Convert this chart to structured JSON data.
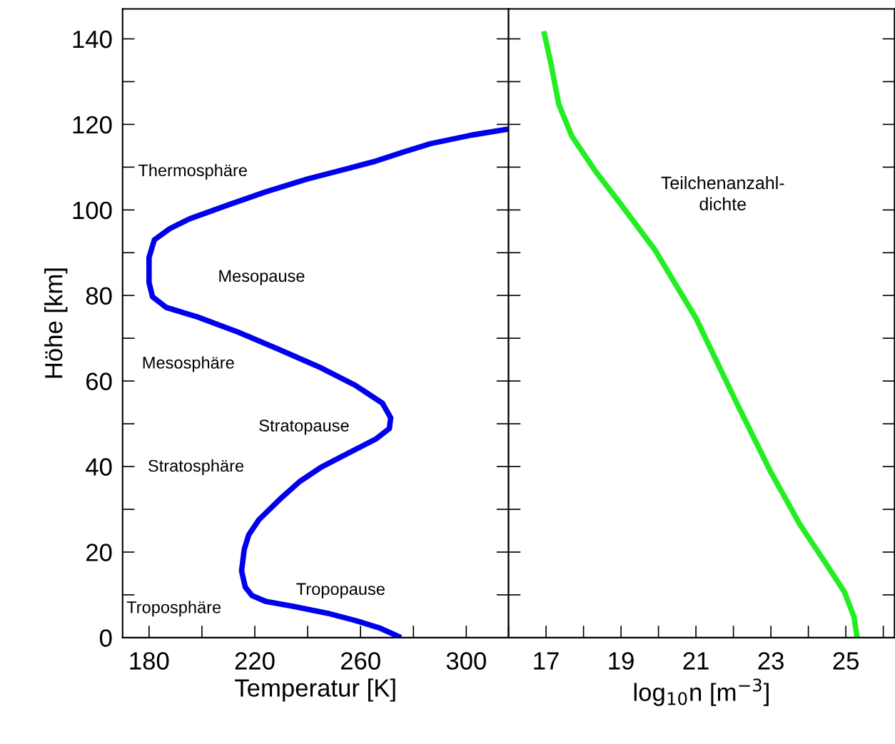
{
  "chart_data": [
    {
      "type": "line",
      "xlabel": "Temperatur [K]",
      "ylabel": "Höhe [km]",
      "xlim": [
        170,
        316
      ],
      "ylim": [
        0,
        147
      ],
      "xticks": [
        180,
        220,
        260,
        300
      ],
      "yticks": [
        0,
        20,
        40,
        60,
        80,
        100,
        120,
        140
      ],
      "grid": false,
      "legend": false,
      "marker": "none",
      "line_style": "solid",
      "series": [
        {
          "color": "#0000ee",
          "x": [
            275.3,
            267,
            258,
            247.5,
            234.5,
            224,
            219,
            216.4,
            215,
            216,
            217.7,
            221.6,
            229.4,
            237,
            245,
            255.3,
            265.7,
            270.9,
            271.4,
            268.3,
            258,
            245,
            229.4,
            213.8,
            198.2,
            186.5,
            181.3,
            180,
            180,
            182,
            187.8,
            195.6,
            211,
            224,
            239.7,
            255.3,
            265.7,
            276,
            286.5,
            302,
            315.8
          ],
          "values": [
            0,
            2.3,
            4,
            5.7,
            7.3,
            8.5,
            9.8,
            11.8,
            15.6,
            20.6,
            24,
            27.6,
            32.3,
            36.5,
            39.8,
            43.1,
            46.4,
            48.9,
            51.4,
            54.8,
            59,
            63.1,
            67.3,
            71.4,
            75,
            77.2,
            79.7,
            83,
            88.9,
            93,
            95.6,
            98,
            101.4,
            104.2,
            107.2,
            109.7,
            111.4,
            113.5,
            115.5,
            117.5,
            118.9
          ]
        }
      ],
      "annotations": [
        "Thermosphäre",
        "Mesopause",
        "Mesosphäre",
        "Stratopause",
        "Stratosphäre",
        "Tropopause",
        "Troposphäre"
      ]
    },
    {
      "type": "line",
      "xlabel": "log$_{10}$n [m$^{−3}$]",
      "xlim": [
        16,
        26.3
      ],
      "ylim": [
        0,
        147
      ],
      "tick_labels": "x",
      "xticks": [
        17,
        19,
        21,
        23,
        25
      ],
      "yticks": [
        0,
        20,
        40,
        60,
        80,
        100,
        120,
        140
      ],
      "grid": false,
      "legend": false,
      "marker": "none",
      "line_style": "solid",
      "series": [
        {
          "color": "#22ee22",
          "x": [
            25.3,
            25.22,
            24.96,
            24.47,
            23.77,
            22.98,
            22.09,
            21,
            19.91,
            18.92,
            18.33,
            17.69,
            17.34,
            17.14,
            16.94
          ],
          "values": [
            0,
            4.8,
            10.7,
            17.3,
            26.5,
            39,
            54.8,
            74.7,
            90.6,
            102.2,
            108.9,
            117.2,
            124.7,
            133.8,
            141.8
          ]
        }
      ],
      "annotations": [
        "Teilchenanzahl-\ndichte"
      ]
    }
  ]
}
